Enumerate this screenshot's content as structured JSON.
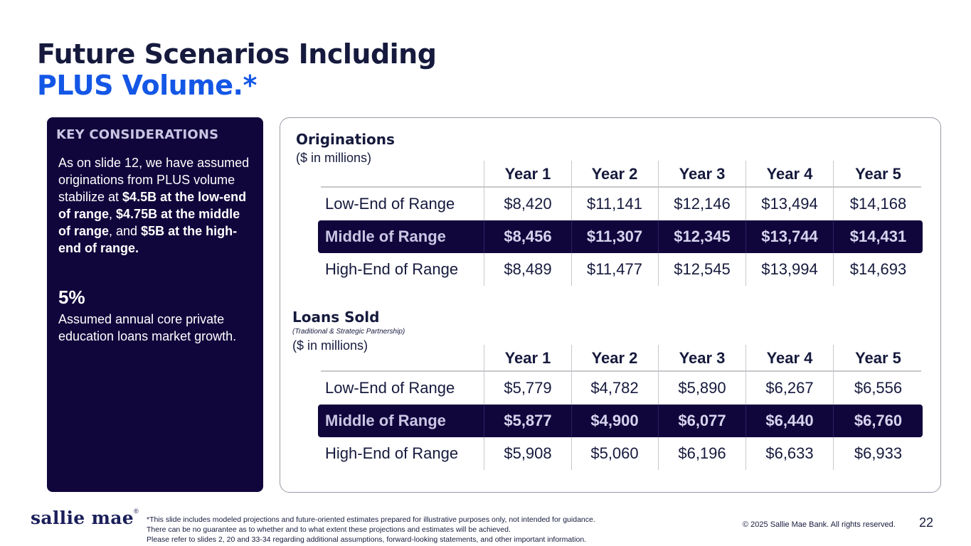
{
  "title": {
    "line1": "Future Scenarios Including",
    "line2": "PLUS Volume.*"
  },
  "key_considerations": {
    "heading": "KEY CONSIDERATIONS",
    "body": {
      "t1": "As on slide 12, we have assumed originations from PLUS volume stabilize at ",
      "b1": "$4.5B at the low-end of range",
      "t2": ", ",
      "b2": "$4.75B at the middle of range",
      "t3": ", and ",
      "b3": "$5B at the high-end of range."
    },
    "stat_value": "5%",
    "stat_text": "Assumed annual core private education loans market growth."
  },
  "originations": {
    "title": "Originations",
    "subtitle": "($ in millions)",
    "columns": [
      "Year 1",
      "Year 2",
      "Year 3",
      "Year 4",
      "Year 5"
    ],
    "rows": [
      {
        "label": "Low-End of Range",
        "values": [
          "$8,420",
          "$11,141",
          "$12,146",
          "$13,494",
          "$14,168"
        ]
      },
      {
        "label": "Middle of Range",
        "values": [
          "$8,456",
          "$11,307",
          "$12,345",
          "$13,744",
          "$14,431"
        ]
      },
      {
        "label": "High-End of Range",
        "values": [
          "$8,489",
          "$11,477",
          "$12,545",
          "$13,994",
          "$14,693"
        ]
      }
    ]
  },
  "loans_sold": {
    "title": "Loans Sold",
    "note": "(Traditional & Strategic Partnership)",
    "subtitle": "($ in millions)",
    "columns": [
      "Year 1",
      "Year 2",
      "Year 3",
      "Year 4",
      "Year 5"
    ],
    "rows": [
      {
        "label": "Low-End of Range",
        "values": [
          "$5,779",
          "$4,782",
          "$5,890",
          "$6,267",
          "$6,556"
        ]
      },
      {
        "label": "Middle of Range",
        "values": [
          "$5,877",
          "$4,900",
          "$6,077",
          "$6,440",
          "$6,760"
        ]
      },
      {
        "label": "High-End of Range",
        "values": [
          "$5,908",
          "$5,060",
          "$6,196",
          "$6,633",
          "$6,933"
        ]
      }
    ]
  },
  "footer": {
    "logo_text": "sallie mae",
    "logo_mark": "®",
    "disclaimer": [
      "*This slide includes modeled projections and future-oriented estimates prepared for illustrative purposes only, not intended for guidance.",
      "There can be no guarantee as to whether and to what extent these projections and estimates will be achieved.",
      "Please refer to slides 2, 20 and 33-34 regarding additional assumptions, forward-looking statements, and other important information."
    ],
    "copyright": "© 2025 Sallie Mae Bank. All rights reserved.",
    "page_number": "22"
  },
  "colors": {
    "navy": "#11063c",
    "brand_blue": "#1457e6",
    "title_dark": "#161a3d"
  }
}
